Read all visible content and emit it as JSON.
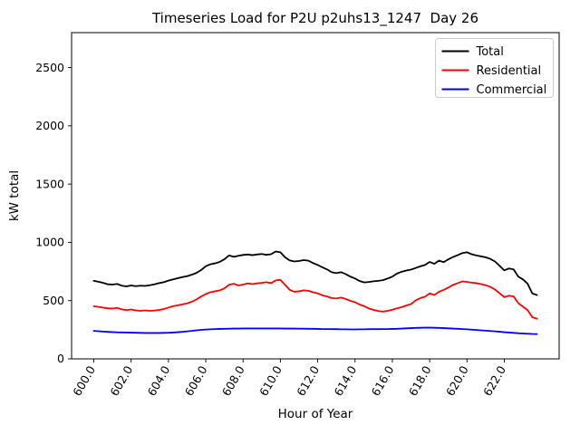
{
  "chart_data": {
    "type": "line",
    "title": "Timeseries Load for P2U p2uhs13_1247  Day 26",
    "xlabel": "Hour of Year",
    "ylabel": "kW total",
    "xlim": [
      598.81,
      624.94
    ],
    "ylim": [
      0,
      2800
    ],
    "grid": false,
    "background_color": "#ffffff",
    "axis_color": "#000000",
    "legend": {
      "position": "upper right",
      "border_color": "#cccccc"
    },
    "xticks": {
      "values": [
        600,
        602,
        604,
        606,
        608,
        610,
        612,
        614,
        616,
        618,
        620,
        622
      ],
      "labels": [
        "600.0",
        "602.0",
        "604.0",
        "606.0",
        "608.0",
        "610.0",
        "612.0",
        "614.0",
        "616.0",
        "618.0",
        "620.0",
        "622.0"
      ],
      "rotation_deg": 60
    },
    "yticks": {
      "values": [
        0,
        500,
        1000,
        1500,
        2000,
        2500
      ],
      "labels": [
        "0",
        "500",
        "1000",
        "1500",
        "2000",
        "2500"
      ]
    },
    "x": [
      600.0,
      600.25,
      600.5,
      600.75,
      601.0,
      601.25,
      601.5,
      601.75,
      602.0,
      602.25,
      602.5,
      602.75,
      603.0,
      603.25,
      603.5,
      603.75,
      604.0,
      604.25,
      604.5,
      604.75,
      605.0,
      605.25,
      605.5,
      605.75,
      606.0,
      606.25,
      606.5,
      606.75,
      607.0,
      607.25,
      607.5,
      607.75,
      608.0,
      608.25,
      608.5,
      608.75,
      609.0,
      609.25,
      609.5,
      609.75,
      610.0,
      610.25,
      610.5,
      610.75,
      611.0,
      611.25,
      611.5,
      611.75,
      612.0,
      612.25,
      612.5,
      612.75,
      613.0,
      613.25,
      613.5,
      613.75,
      614.0,
      614.25,
      614.5,
      614.75,
      615.0,
      615.25,
      615.5,
      615.75,
      616.0,
      616.25,
      616.5,
      616.75,
      617.0,
      617.25,
      617.5,
      617.75,
      618.0,
      618.25,
      618.5,
      618.75,
      619.0,
      619.25,
      619.5,
      619.75,
      620.0,
      620.25,
      620.5,
      620.75,
      621.0,
      621.25,
      621.5,
      621.75,
      622.0,
      622.25,
      622.5,
      622.75,
      623.0,
      623.25,
      623.5,
      623.75
    ],
    "series": [
      {
        "name": "Total",
        "color": "#000000",
        "values": [
          670,
          662,
          652,
          640,
          638,
          643,
          628,
          622,
          630,
          624,
          628,
          626,
          632,
          640,
          650,
          658,
          672,
          682,
          692,
          702,
          710,
          722,
          738,
          762,
          795,
          812,
          820,
          832,
          855,
          888,
          876,
          885,
          892,
          896,
          890,
          896,
          900,
          893,
          898,
          922,
          915,
          872,
          845,
          836,
          840,
          848,
          843,
          822,
          806,
          786,
          768,
          744,
          736,
          744,
          728,
          706,
          690,
          668,
          656,
          660,
          666,
          670,
          676,
          690,
          706,
          732,
          748,
          758,
          766,
          780,
          794,
          806,
          832,
          816,
          844,
          830,
          854,
          874,
          890,
          908,
          915,
          898,
          888,
          880,
          872,
          858,
          836,
          798,
          760,
          776,
          768,
          706,
          682,
          645,
          562,
          548
        ]
      },
      {
        "name": "Residential",
        "color": "#ff0000",
        "values": [
          452,
          446,
          440,
          434,
          432,
          438,
          425,
          418,
          424,
          416,
          412,
          416,
          412,
          415,
          420,
          428,
          440,
          452,
          460,
          468,
          476,
          490,
          510,
          535,
          556,
          572,
          580,
          588,
          605,
          636,
          645,
          630,
          638,
          648,
          642,
          648,
          652,
          658,
          650,
          674,
          678,
          636,
          592,
          576,
          580,
          588,
          584,
          572,
          562,
          545,
          536,
          522,
          518,
          526,
          514,
          498,
          486,
          466,
          452,
          432,
          420,
          410,
          406,
          412,
          422,
          434,
          444,
          458,
          470,
          502,
          522,
          534,
          562,
          548,
          576,
          592,
          612,
          635,
          650,
          665,
          660,
          654,
          650,
          642,
          632,
          618,
          595,
          562,
          530,
          542,
          536,
          478,
          448,
          418,
          358,
          344
        ]
      },
      {
        "name": "Commercial",
        "color": "#0000ff",
        "values": [
          240,
          237,
          234,
          232,
          230,
          228,
          227,
          226,
          225,
          224,
          223,
          222,
          222,
          222,
          222,
          223,
          224,
          226,
          229,
          232,
          236,
          240,
          245,
          249,
          252,
          254,
          256,
          257,
          258,
          259,
          260,
          260,
          261,
          261,
          261,
          261,
          261,
          261,
          261,
          261,
          261,
          260,
          260,
          260,
          259,
          259,
          258,
          258,
          257,
          256,
          256,
          255,
          255,
          254,
          254,
          253,
          253,
          254,
          254,
          255,
          255,
          255,
          256,
          256,
          257,
          258,
          260,
          262,
          264,
          266,
          267,
          268,
          268,
          267,
          266,
          264,
          262,
          260,
          258,
          256,
          254,
          251,
          248,
          245,
          242,
          239,
          236,
          233,
          229,
          226,
          223,
          220,
          218,
          216,
          214,
          213
        ]
      }
    ]
  }
}
